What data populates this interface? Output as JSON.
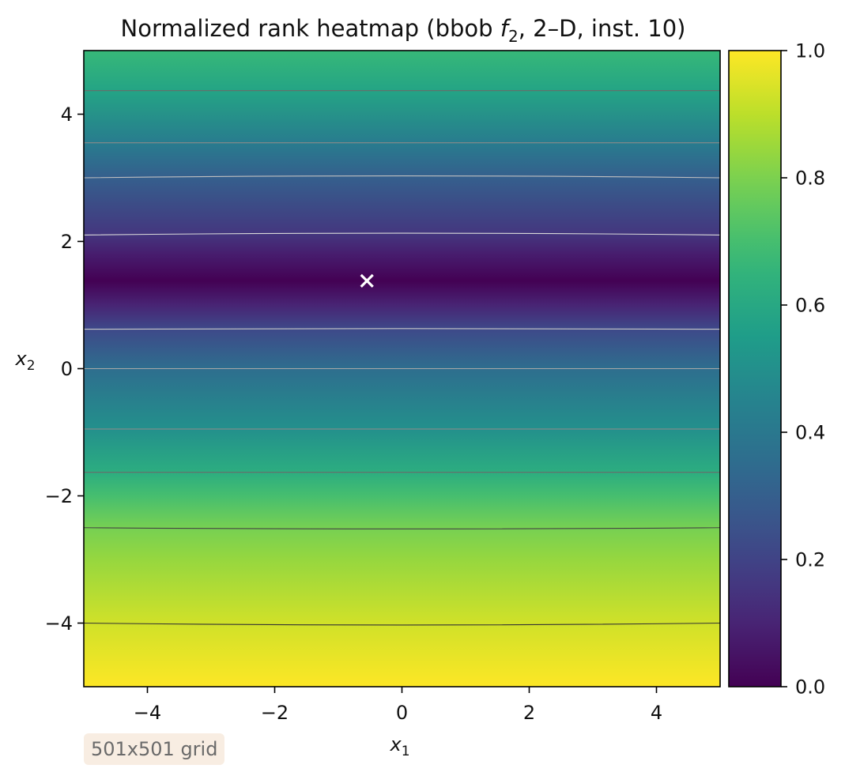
{
  "chart_data": {
    "type": "heatmap",
    "title_prefix": "Normalized rank heatmap (bbob ",
    "title_f": "f",
    "title_f_sub": "2",
    "title_suffix": ", 2–D, inst. 10)",
    "xlabel": "x",
    "xlabel_sub": "1",
    "ylabel": "x",
    "ylabel_sub": "2",
    "xlim": [
      -5,
      5
    ],
    "ylim": [
      -5,
      5
    ],
    "x_ticks": [
      -4,
      -2,
      0,
      2,
      4
    ],
    "y_ticks": [
      -4,
      -2,
      0,
      2,
      4
    ],
    "x_tick_labels": [
      "−4",
      "−2",
      "0",
      "2",
      "4"
    ],
    "y_tick_labels": [
      "−4",
      "−2",
      "0",
      "2",
      "4"
    ],
    "colormap": "viridis",
    "colorbar": {
      "range": [
        0.0,
        1.0
      ],
      "ticks": [
        0.0,
        0.2,
        0.4,
        0.6,
        0.8,
        1.0
      ],
      "tick_labels": [
        "0.0",
        "0.2",
        "0.4",
        "0.6",
        "0.8",
        "1.0"
      ]
    },
    "value_profile_along_x2": [
      {
        "x2": -5.0,
        "value": 1.0
      },
      {
        "x2": -4.0,
        "value": 0.93
      },
      {
        "x2": -3.0,
        "value": 0.84
      },
      {
        "x2": -2.5,
        "value": 0.79
      },
      {
        "x2": -2.0,
        "value": 0.7
      },
      {
        "x2": -1.63,
        "value": 0.62
      },
      {
        "x2": -0.95,
        "value": 0.5
      },
      {
        "x2": 0.0,
        "value": 0.36
      },
      {
        "x2": 0.62,
        "value": 0.22
      },
      {
        "x2": 1.0,
        "value": 0.1
      },
      {
        "x2": 1.38,
        "value": 0.0
      },
      {
        "x2": 1.8,
        "value": 0.08
      },
      {
        "x2": 2.12,
        "value": 0.16
      },
      {
        "x2": 3.0,
        "value": 0.3
      },
      {
        "x2": 3.55,
        "value": 0.42
      },
      {
        "x2": 4.37,
        "value": 0.58
      },
      {
        "x2": 5.0,
        "value": 0.67
      }
    ],
    "contour_lines": [
      {
        "x2_left": -4.0,
        "x2_mid": -4.03,
        "x2_right": -4.0,
        "color": "#333333"
      },
      {
        "x2_left": -2.5,
        "x2_mid": -2.52,
        "x2_right": -2.5,
        "color": "#444444"
      },
      {
        "x2_left": -1.63,
        "x2_mid": -1.63,
        "x2_right": -1.63,
        "color": "#6a6a6a"
      },
      {
        "x2_left": -0.95,
        "x2_mid": -0.95,
        "x2_right": -0.95,
        "color": "#8a8a8a"
      },
      {
        "x2_left": 0.0,
        "x2_mid": 0.0,
        "x2_right": 0.0,
        "color": "#a8a8a8"
      },
      {
        "x2_left": 0.62,
        "x2_mid": 0.63,
        "x2_right": 0.62,
        "color": "#c8c8c8"
      },
      {
        "x2_left": 2.1,
        "x2_mid": 2.13,
        "x2_right": 2.1,
        "color": "#d8d8d8"
      },
      {
        "x2_left": 3.0,
        "x2_mid": 3.03,
        "x2_right": 3.0,
        "color": "#c0c0c0"
      },
      {
        "x2_left": 3.55,
        "x2_mid": 3.55,
        "x2_right": 3.55,
        "color": "#8a8a8a"
      },
      {
        "x2_left": 4.37,
        "x2_mid": 4.37,
        "x2_right": 4.37,
        "color": "#6a6a6a"
      }
    ],
    "optimum_marker": {
      "x1": -0.55,
      "x2": 1.38,
      "symbol": "×",
      "color": "#ffffff"
    },
    "annotation": "501x501 grid"
  }
}
